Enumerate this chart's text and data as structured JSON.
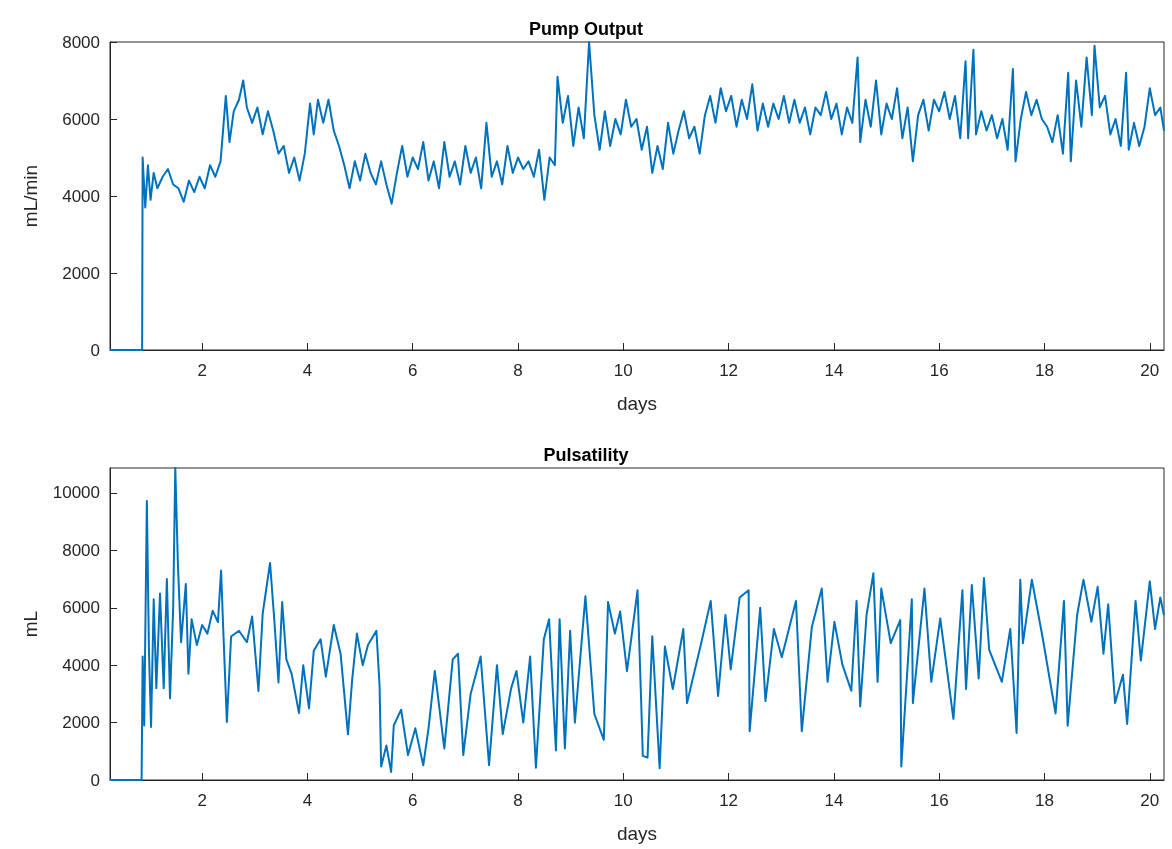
{
  "chart_data": [
    {
      "type": "line",
      "title": "Pump Output",
      "xlabel": "days",
      "ylabel": "mL/min",
      "color": "#0072bd",
      "marker": "none",
      "xlim": [
        0.25,
        20.27
      ],
      "xticks": [
        2,
        4,
        6,
        8,
        10,
        12,
        14,
        16,
        18,
        20
      ],
      "ylim": [
        0,
        8000
      ],
      "yticks": [
        0,
        2000,
        4000,
        6000,
        8000
      ],
      "x": [
        0.25,
        0.86,
        0.87,
        0.92,
        0.97,
        1.02,
        1.08,
        1.15,
        1.25,
        1.35,
        1.45,
        1.55,
        1.65,
        1.75,
        1.85,
        1.95,
        2.05,
        2.15,
        2.25,
        2.35,
        2.45,
        2.52,
        2.6,
        2.7,
        2.78,
        2.85,
        2.95,
        3.05,
        3.15,
        3.25,
        3.35,
        3.45,
        3.55,
        3.65,
        3.75,
        3.85,
        3.95,
        4.05,
        4.12,
        4.2,
        4.3,
        4.4,
        4.5,
        4.6,
        4.7,
        4.8,
        4.9,
        5.0,
        5.1,
        5.2,
        5.3,
        5.4,
        5.5,
        5.6,
        5.7,
        5.8,
        5.9,
        6.0,
        6.1,
        6.2,
        6.3,
        6.4,
        6.5,
        6.6,
        6.7,
        6.8,
        6.9,
        7.0,
        7.1,
        7.2,
        7.3,
        7.4,
        7.5,
        7.6,
        7.7,
        7.8,
        7.9,
        8.0,
        8.1,
        8.2,
        8.3,
        8.4,
        8.5,
        8.6,
        8.7,
        8.75,
        8.85,
        8.95,
        9.05,
        9.15,
        9.25,
        9.35,
        9.45,
        9.55,
        9.65,
        9.75,
        9.85,
        9.95,
        10.05,
        10.15,
        10.25,
        10.35,
        10.45,
        10.55,
        10.65,
        10.75,
        10.85,
        10.95,
        11.05,
        11.15,
        11.25,
        11.35,
        11.45,
        11.55,
        11.65,
        11.75,
        11.85,
        11.95,
        12.05,
        12.15,
        12.25,
        12.35,
        12.45,
        12.55,
        12.65,
        12.75,
        12.85,
        12.95,
        13.05,
        13.15,
        13.25,
        13.35,
        13.45,
        13.55,
        13.65,
        13.75,
        13.85,
        13.95,
        14.05,
        14.15,
        14.25,
        14.35,
        14.45,
        14.5,
        14.6,
        14.7,
        14.8,
        14.9,
        15.0,
        15.1,
        15.2,
        15.3,
        15.4,
        15.5,
        15.6,
        15.7,
        15.8,
        15.9,
        16.0,
        16.1,
        16.2,
        16.3,
        16.4,
        16.5,
        16.55,
        16.65,
        16.7,
        16.8,
        16.9,
        17.0,
        17.1,
        17.2,
        17.3,
        17.4,
        17.45,
        17.55,
        17.65,
        17.75,
        17.85,
        17.95,
        18.05,
        18.15,
        18.25,
        18.35,
        18.45,
        18.5,
        18.6,
        18.7,
        18.8,
        18.9,
        18.95,
        19.05,
        19.15,
        19.25,
        19.35,
        19.45,
        19.55,
        19.6,
        19.7,
        19.8,
        19.9,
        20.0,
        20.1,
        20.2,
        20.27
      ],
      "values": [
        0,
        0,
        5000,
        3700,
        4800,
        3900,
        4600,
        4200,
        4500,
        4700,
        4300,
        4200,
        3850,
        4400,
        4100,
        4500,
        4200,
        4800,
        4500,
        4900,
        6600,
        5400,
        6200,
        6500,
        7000,
        6300,
        5900,
        6300,
        5600,
        6200,
        5700,
        5100,
        5300,
        4600,
        5000,
        4400,
        5100,
        6400,
        5600,
        6500,
        5900,
        6500,
        5700,
        5300,
        4800,
        4200,
        4900,
        4400,
        5100,
        4600,
        4300,
        4900,
        4300,
        3800,
        4600,
        5300,
        4500,
        5000,
        4700,
        5400,
        4400,
        4900,
        4200,
        5400,
        4500,
        4900,
        4300,
        5300,
        4600,
        5000,
        4200,
        5900,
        4500,
        4900,
        4300,
        5300,
        4600,
        5000,
        4700,
        4900,
        4500,
        5200,
        3900,
        5000,
        4800,
        7100,
        5900,
        6600,
        5300,
        6300,
        5500,
        8000,
        6100,
        5200,
        6200,
        5300,
        6000,
        5600,
        6500,
        5800,
        6000,
        5200,
        5800,
        4600,
        5300,
        4700,
        5900,
        5100,
        5700,
        6200,
        5500,
        5800,
        5100,
        6100,
        6600,
        5900,
        6800,
        6200,
        6600,
        5800,
        6500,
        6000,
        6900,
        5700,
        6400,
        5800,
        6400,
        6000,
        6600,
        5900,
        6500,
        5900,
        6300,
        5600,
        6300,
        6100,
        6700,
        6000,
        6400,
        5600,
        6300,
        5900,
        7600,
        5400,
        6500,
        5800,
        7000,
        5600,
        6400,
        6000,
        6800,
        5500,
        6300,
        4900,
        6100,
        6500,
        5700,
        6500,
        6200,
        6700,
        6000,
        6600,
        5500,
        7500,
        5500,
        7800,
        5600,
        6200,
        5700,
        6100,
        5500,
        6000,
        5200,
        7300,
        4900,
        6000,
        6700,
        6100,
        6500,
        6000,
        5800,
        5400,
        6100,
        5100,
        7200,
        4900,
        7000,
        5800,
        7600,
        6100,
        7900,
        6300,
        6600,
        5600,
        6000,
        5300,
        7200,
        5200,
        5900,
        5300,
        5800,
        6800,
        6100,
        6300,
        5700
      ]
    },
    {
      "type": "line",
      "title": "Pulsatility",
      "xlabel": "days",
      "ylabel": "mL",
      "color": "#0072bd",
      "marker": "none",
      "xlim": [
        0.25,
        20.27
      ],
      "xticks": [
        2,
        4,
        6,
        8,
        10,
        12,
        14,
        16,
        18,
        20
      ],
      "ylim": [
        0,
        10870
      ],
      "yticks": [
        0,
        2000,
        4000,
        6000,
        8000,
        10000
      ],
      "x": [
        0.25,
        0.85,
        0.87,
        0.9,
        0.95,
        0.99,
        1.03,
        1.08,
        1.13,
        1.2,
        1.27,
        1.33,
        1.39,
        1.45,
        1.49,
        1.54,
        1.6,
        1.69,
        1.74,
        1.8,
        1.9,
        2.0,
        2.1,
        2.2,
        2.3,
        2.36,
        2.4,
        2.47,
        2.55,
        2.7,
        2.85,
        2.95,
        3.07,
        3.15,
        3.29,
        3.37,
        3.45,
        3.52,
        3.6,
        3.7,
        3.84,
        3.92,
        4.03,
        4.12,
        4.25,
        4.35,
        4.5,
        4.63,
        4.77,
        4.85,
        4.94,
        5.05,
        5.15,
        5.31,
        5.37,
        5.4,
        5.5,
        5.59,
        5.64,
        5.78,
        5.91,
        6.05,
        6.2,
        6.3,
        6.42,
        6.6,
        6.76,
        6.86,
        6.96,
        7.1,
        7.29,
        7.45,
        7.6,
        7.71,
        7.87,
        7.97,
        8.1,
        8.23,
        8.34,
        8.49,
        8.59,
        8.72,
        8.79,
        8.89,
        8.99,
        9.08,
        9.28,
        9.45,
        9.63,
        9.71,
        9.84,
        9.94,
        10.07,
        10.27,
        10.34,
        10.37,
        10.46,
        10.55,
        10.69,
        10.79,
        10.94,
        11.14,
        11.21,
        11.48,
        11.66,
        11.8,
        11.94,
        12.04,
        12.21,
        12.38,
        12.4,
        12.6,
        12.7,
        12.86,
        13.01,
        13.28,
        13.39,
        13.58,
        13.77,
        13.88,
        14.01,
        14.16,
        14.33,
        14.43,
        14.5,
        14.62,
        14.75,
        14.83,
        14.9,
        15.08,
        15.26,
        15.28,
        15.48,
        15.5,
        15.72,
        15.85,
        16.02,
        16.27,
        16.44,
        16.51,
        16.62,
        16.75,
        16.85,
        16.95,
        17.19,
        17.35,
        17.47,
        17.54,
        17.59,
        17.76,
        17.96,
        18.21,
        18.37,
        18.44,
        18.62,
        18.74,
        18.89,
        19.01,
        19.12,
        19.21,
        19.34,
        19.49,
        19.57,
        19.73,
        19.83,
        20.0,
        20.1,
        20.2,
        20.27
      ],
      "values": [
        0,
        0,
        4300,
        1900,
        9720,
        4500,
        1850,
        6300,
        3200,
        6500,
        3200,
        7000,
        2850,
        6000,
        10870,
        7500,
        4800,
        6830,
        3700,
        5600,
        4700,
        5400,
        5100,
        5900,
        5500,
        7300,
        5300,
        2020,
        5000,
        5200,
        4800,
        5700,
        3100,
        5800,
        7560,
        5600,
        3400,
        6200,
        4200,
        3700,
        2330,
        4000,
        2500,
        4500,
        4900,
        3600,
        5400,
        4400,
        1590,
        3500,
        5100,
        4000,
        4700,
        5200,
        3300,
        470,
        1200,
        280,
        1900,
        2450,
        870,
        1800,
        510,
        1800,
        3800,
        1100,
        4200,
        4400,
        870,
        3000,
        4300,
        520,
        4000,
        1600,
        3200,
        3800,
        2000,
        4300,
        430,
        4900,
        5600,
        1030,
        5600,
        1100,
        5200,
        2000,
        6400,
        2300,
        1400,
        6200,
        5100,
        5870,
        3790,
        6610,
        2680,
        840,
        780,
        5010,
        410,
        4650,
        3170,
        5260,
        2680,
        4770,
        6240,
        2930,
        5750,
        3850,
        6360,
        6610,
        1700,
        6000,
        2750,
        5260,
        4280,
        6240,
        1700,
        5320,
        6670,
        3420,
        5510,
        4030,
        3110,
        6240,
        2560,
        5750,
        7200,
        3420,
        6670,
        4770,
        5570,
        470,
        6300,
        2680,
        6670,
        3420,
        5630,
        2130,
        6610,
        3170,
        6790,
        3540,
        7040,
        4530,
        3420,
        5260,
        1640,
        6980,
        4770,
        6980,
        5010,
        2320,
        6240,
        1890,
        5750,
        6980,
        5510,
        6730,
        4400,
        6120,
        2680,
        3670,
        1950,
        6240,
        4160,
        6920,
        5260,
        6360,
        5750
      ]
    }
  ]
}
